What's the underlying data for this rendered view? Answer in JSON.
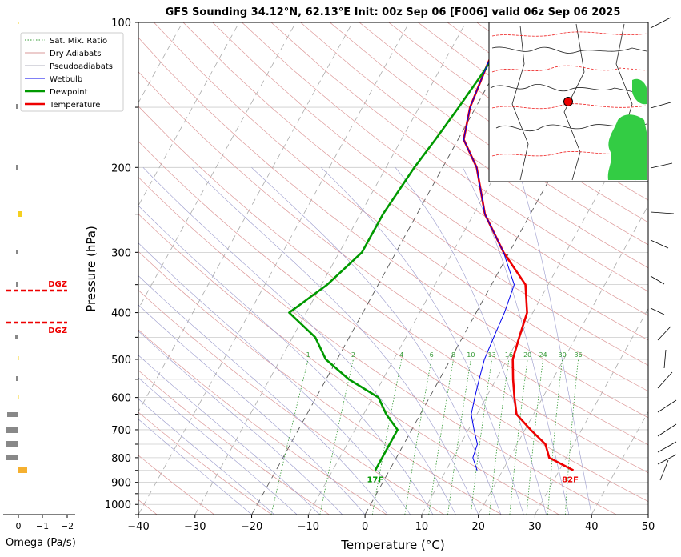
{
  "chart_data": {
    "type": "line",
    "title": "GFS Sounding 34.12°N, 62.13°E Init: 00z Sep 06 [F006] valid 06z Sep 06 2025",
    "xlabel": "Temperature (°C)",
    "ylabel": "Pressure (hPa)",
    "xlim": [
      -40,
      50
    ],
    "ylim": [
      1050,
      100
    ],
    "yscale": "log",
    "grid": true,
    "legend_position": "top-left",
    "x_ticks": [
      "−40",
      "−30",
      "−20",
      "−10",
      "0",
      "10",
      "20",
      "30",
      "40",
      "50"
    ],
    "y_ticks": [
      "100",
      "200",
      "300",
      "400",
      "500",
      "600",
      "700",
      "800",
      "900",
      "1000"
    ],
    "legend": [
      "Sat. Mix. Ratio",
      "Dry Adiabats",
      "Pseudoadiabats",
      "Wetbulb",
      "Dewpoint",
      "Temperature"
    ],
    "series": [
      {
        "name": "Temperature",
        "color": "#ee0000",
        "points": [
          [
            32.5,
            850
          ],
          [
            27,
            800
          ],
          [
            25,
            750
          ],
          [
            21,
            700
          ],
          [
            17,
            650
          ],
          [
            15,
            600
          ],
          [
            13,
            550
          ],
          [
            11,
            500
          ],
          [
            10,
            450
          ],
          [
            9,
            400
          ],
          [
            6,
            350
          ],
          [
            -1,
            300
          ],
          [
            -8,
            250
          ],
          [
            -14,
            200
          ],
          [
            -19,
            175
          ],
          [
            -21,
            150
          ],
          [
            -22,
            125
          ],
          [
            -23,
            100
          ]
        ]
      },
      {
        "name": "Dewpoint",
        "color": "#009900",
        "points": [
          [
            -2.5,
            850
          ],
          [
            -2.5,
            800
          ],
          [
            -2.5,
            750
          ],
          [
            -2.5,
            700
          ],
          [
            -6,
            650
          ],
          [
            -9,
            600
          ],
          [
            -16,
            550
          ],
          [
            -22,
            500
          ],
          [
            -26,
            450
          ],
          [
            -33,
            400
          ],
          [
            -29,
            350
          ],
          [
            -26,
            300
          ],
          [
            -26,
            250
          ],
          [
            -25,
            200
          ],
          [
            -24,
            175
          ],
          [
            -23,
            150
          ],
          [
            -22,
            125
          ],
          [
            -22,
            100
          ]
        ]
      },
      {
        "name": "Wetbulb",
        "color": "#0000ee",
        "points": [
          [
            15.5,
            850
          ],
          [
            13.5,
            800
          ],
          [
            13,
            750
          ],
          [
            11,
            700
          ],
          [
            9,
            650
          ],
          [
            8,
            600
          ],
          [
            7,
            550
          ],
          [
            6,
            500
          ],
          [
            5.5,
            450
          ],
          [
            5,
            400
          ],
          [
            4,
            350
          ],
          [
            -1,
            300
          ],
          [
            -8,
            250
          ],
          [
            -14,
            200
          ],
          [
            -19,
            175
          ],
          [
            -21,
            150
          ],
          [
            -22,
            125
          ],
          [
            -23,
            100
          ]
        ]
      }
    ],
    "mixing_ratio_labels": [
      "1",
      "2",
      "4",
      "6",
      "8",
      "10",
      "13",
      "16",
      "20",
      "24",
      "30",
      "36"
    ],
    "surface_labels": {
      "temperature": "82F",
      "dewpoint": "17F"
    },
    "omega_panel": {
      "xlabel": "Omega (Pa/s)",
      "x_ticks": [
        "0",
        "−1",
        "−2"
      ],
      "dgz_label": "DGZ",
      "dgz_pressures": [
        360,
        420
      ]
    }
  }
}
